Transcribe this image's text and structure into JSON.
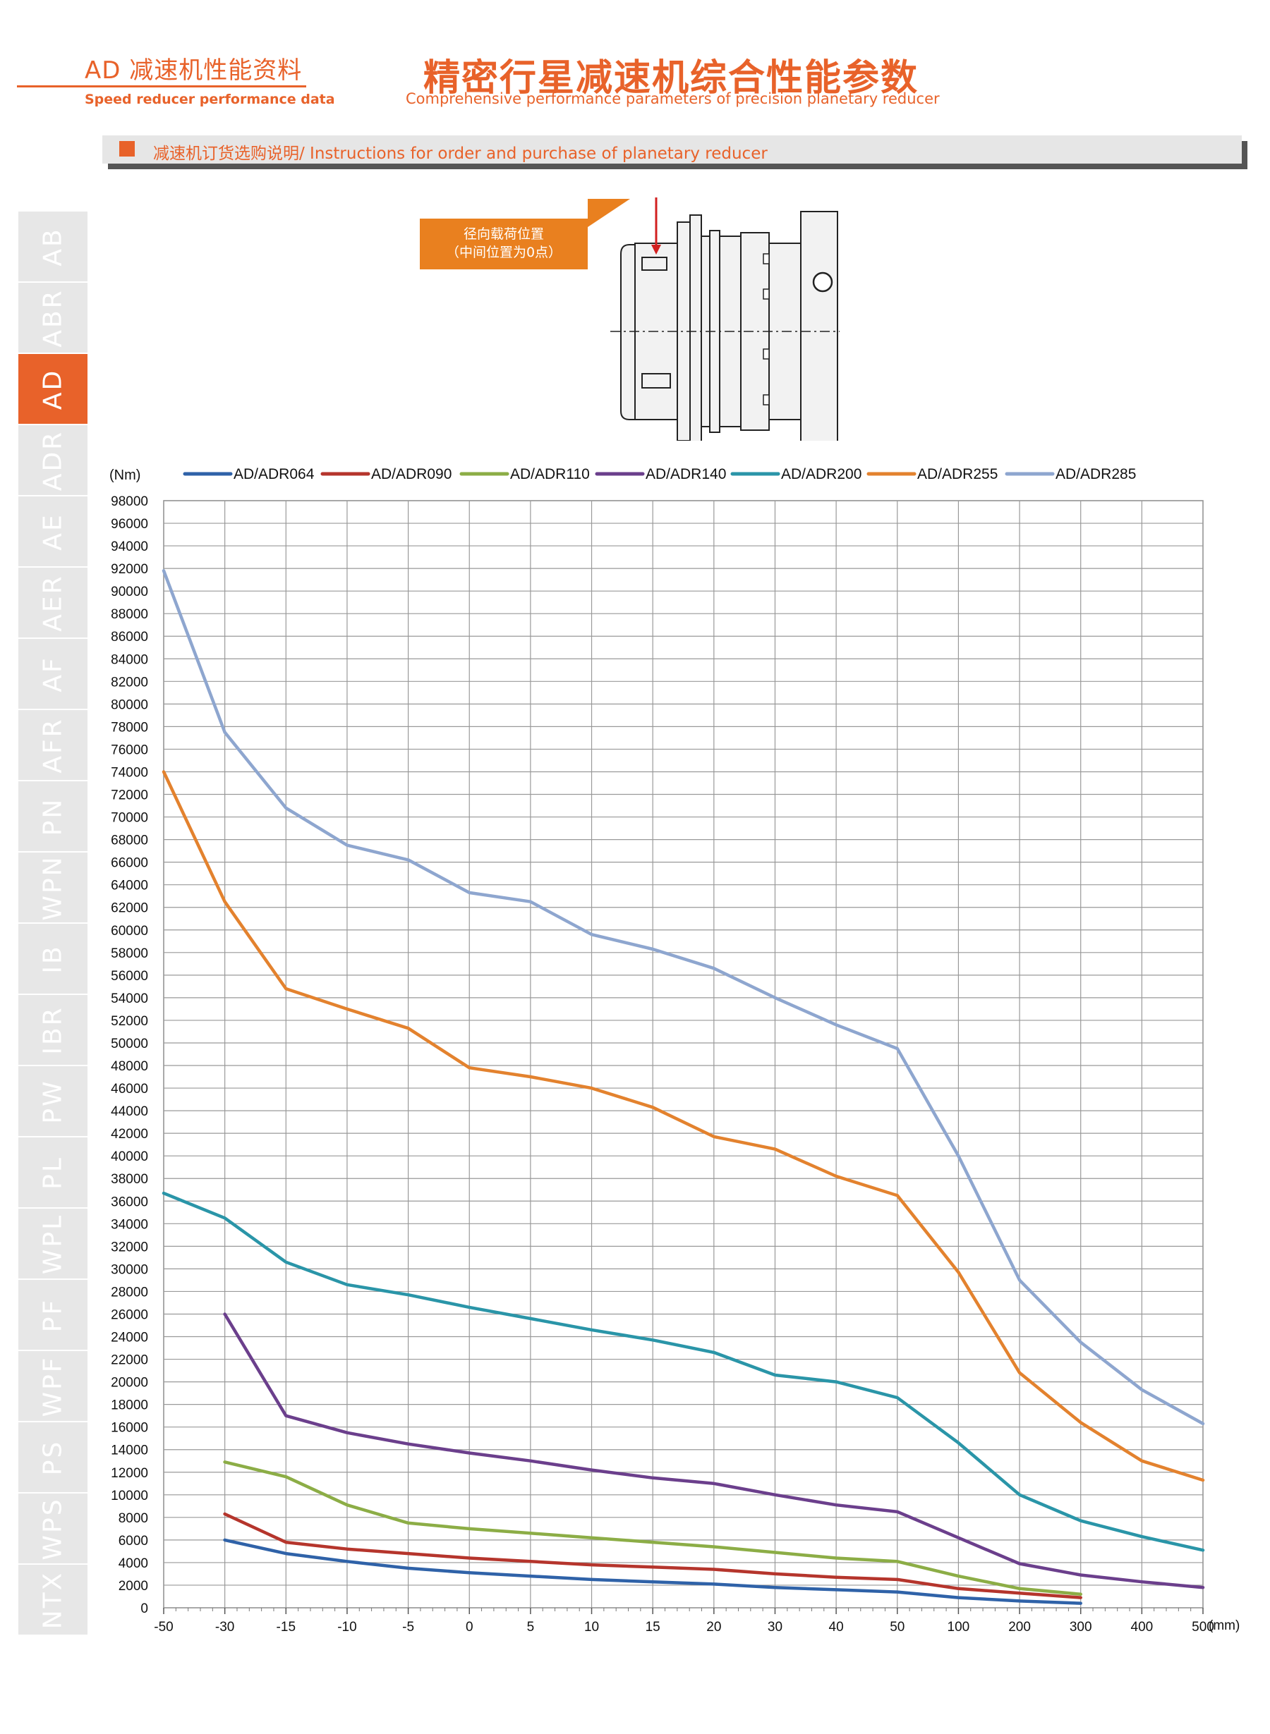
{
  "header": {
    "left_cn": "AD 减速机性能资料",
    "left_en": "Speed reducer performance data",
    "main_cn": "精密行星减速机综合性能参数",
    "main_en": "Comprehensive performance parameters of precision planetary reducer"
  },
  "banner": {
    "text": "减速机订货选购说明/ Instructions for order and purchase of planetary reducer"
  },
  "sidebar": {
    "active": "AD",
    "tabs": [
      "AB",
      "ABR",
      "AD",
      "ADR",
      "AE",
      "AER",
      "AF",
      "AFR",
      "PN",
      "WPN",
      "IB",
      "IBR",
      "PW",
      "PL",
      "WPL",
      "PF",
      "WPF",
      "PS",
      "WPS",
      "NTX"
    ]
  },
  "diagram": {
    "callout_line1": "径向载荷位置",
    "callout_line2": "（中间位置为0点）"
  },
  "colors": {
    "accent": "#e8622a",
    "callout": "#e9801f",
    "grid": "#999999"
  },
  "chart_data": {
    "type": "line",
    "ylabel": "(Nm)",
    "xlabel": "(mm)",
    "ylim": [
      0,
      98000
    ],
    "y_step": 2000,
    "categories": [
      "-50",
      "-30",
      "-15",
      "-10",
      "-5",
      "0",
      "5",
      "10",
      "15",
      "20",
      "30",
      "40",
      "50",
      "100",
      "200",
      "300",
      "400",
      "500"
    ],
    "grid": true,
    "legend_position": "top",
    "series": [
      {
        "name": "AD/ADR064",
        "color": "#2f62a8",
        "values": [
          null,
          6000,
          4800,
          4100,
          3500,
          3100,
          2800,
          2500,
          2300,
          2100,
          1800,
          1600,
          1400,
          900,
          600,
          400,
          null,
          null
        ]
      },
      {
        "name": "AD/ADR090",
        "color": "#b5352c",
        "values": [
          null,
          8300,
          5800,
          5200,
          4800,
          4400,
          4100,
          3800,
          3600,
          3400,
          3000,
          2700,
          2500,
          1700,
          1300,
          900,
          null,
          null
        ]
      },
      {
        "name": "AD/ADR110",
        "color": "#8cad46",
        "values": [
          null,
          12900,
          11600,
          9100,
          7500,
          7000,
          6600,
          6200,
          5800,
          5400,
          4900,
          4400,
          4100,
          2800,
          1700,
          1200,
          null,
          null
        ]
      },
      {
        "name": "AD/ADR140",
        "color": "#6b3f8c",
        "values": [
          null,
          26000,
          17000,
          15500,
          14500,
          13700,
          13000,
          12200,
          11500,
          11000,
          10000,
          9100,
          8500,
          6200,
          3900,
          2900,
          2300,
          1800
        ]
      },
      {
        "name": "AD/ADR200",
        "color": "#2a95a8",
        "values": [
          36700,
          34500,
          30600,
          28600,
          27700,
          26600,
          25600,
          24600,
          23700,
          22600,
          20600,
          20000,
          18600,
          14600,
          10000,
          7700,
          6300,
          5100
        ]
      },
      {
        "name": "AD/ADR255",
        "color": "#e3822e",
        "values": [
          74000,
          62500,
          54800,
          53000,
          51300,
          47800,
          47000,
          46000,
          44300,
          41700,
          40600,
          38200,
          36500,
          29700,
          20800,
          16400,
          13000,
          11300
        ]
      },
      {
        "name": "AD/ADR285",
        "color": "#8ea6cf",
        "values": [
          91800,
          77500,
          70800,
          67500,
          66200,
          63300,
          62500,
          59600,
          58300,
          56600,
          54000,
          51600,
          49500,
          40000,
          29000,
          23500,
          19300,
          16300
        ]
      }
    ]
  }
}
